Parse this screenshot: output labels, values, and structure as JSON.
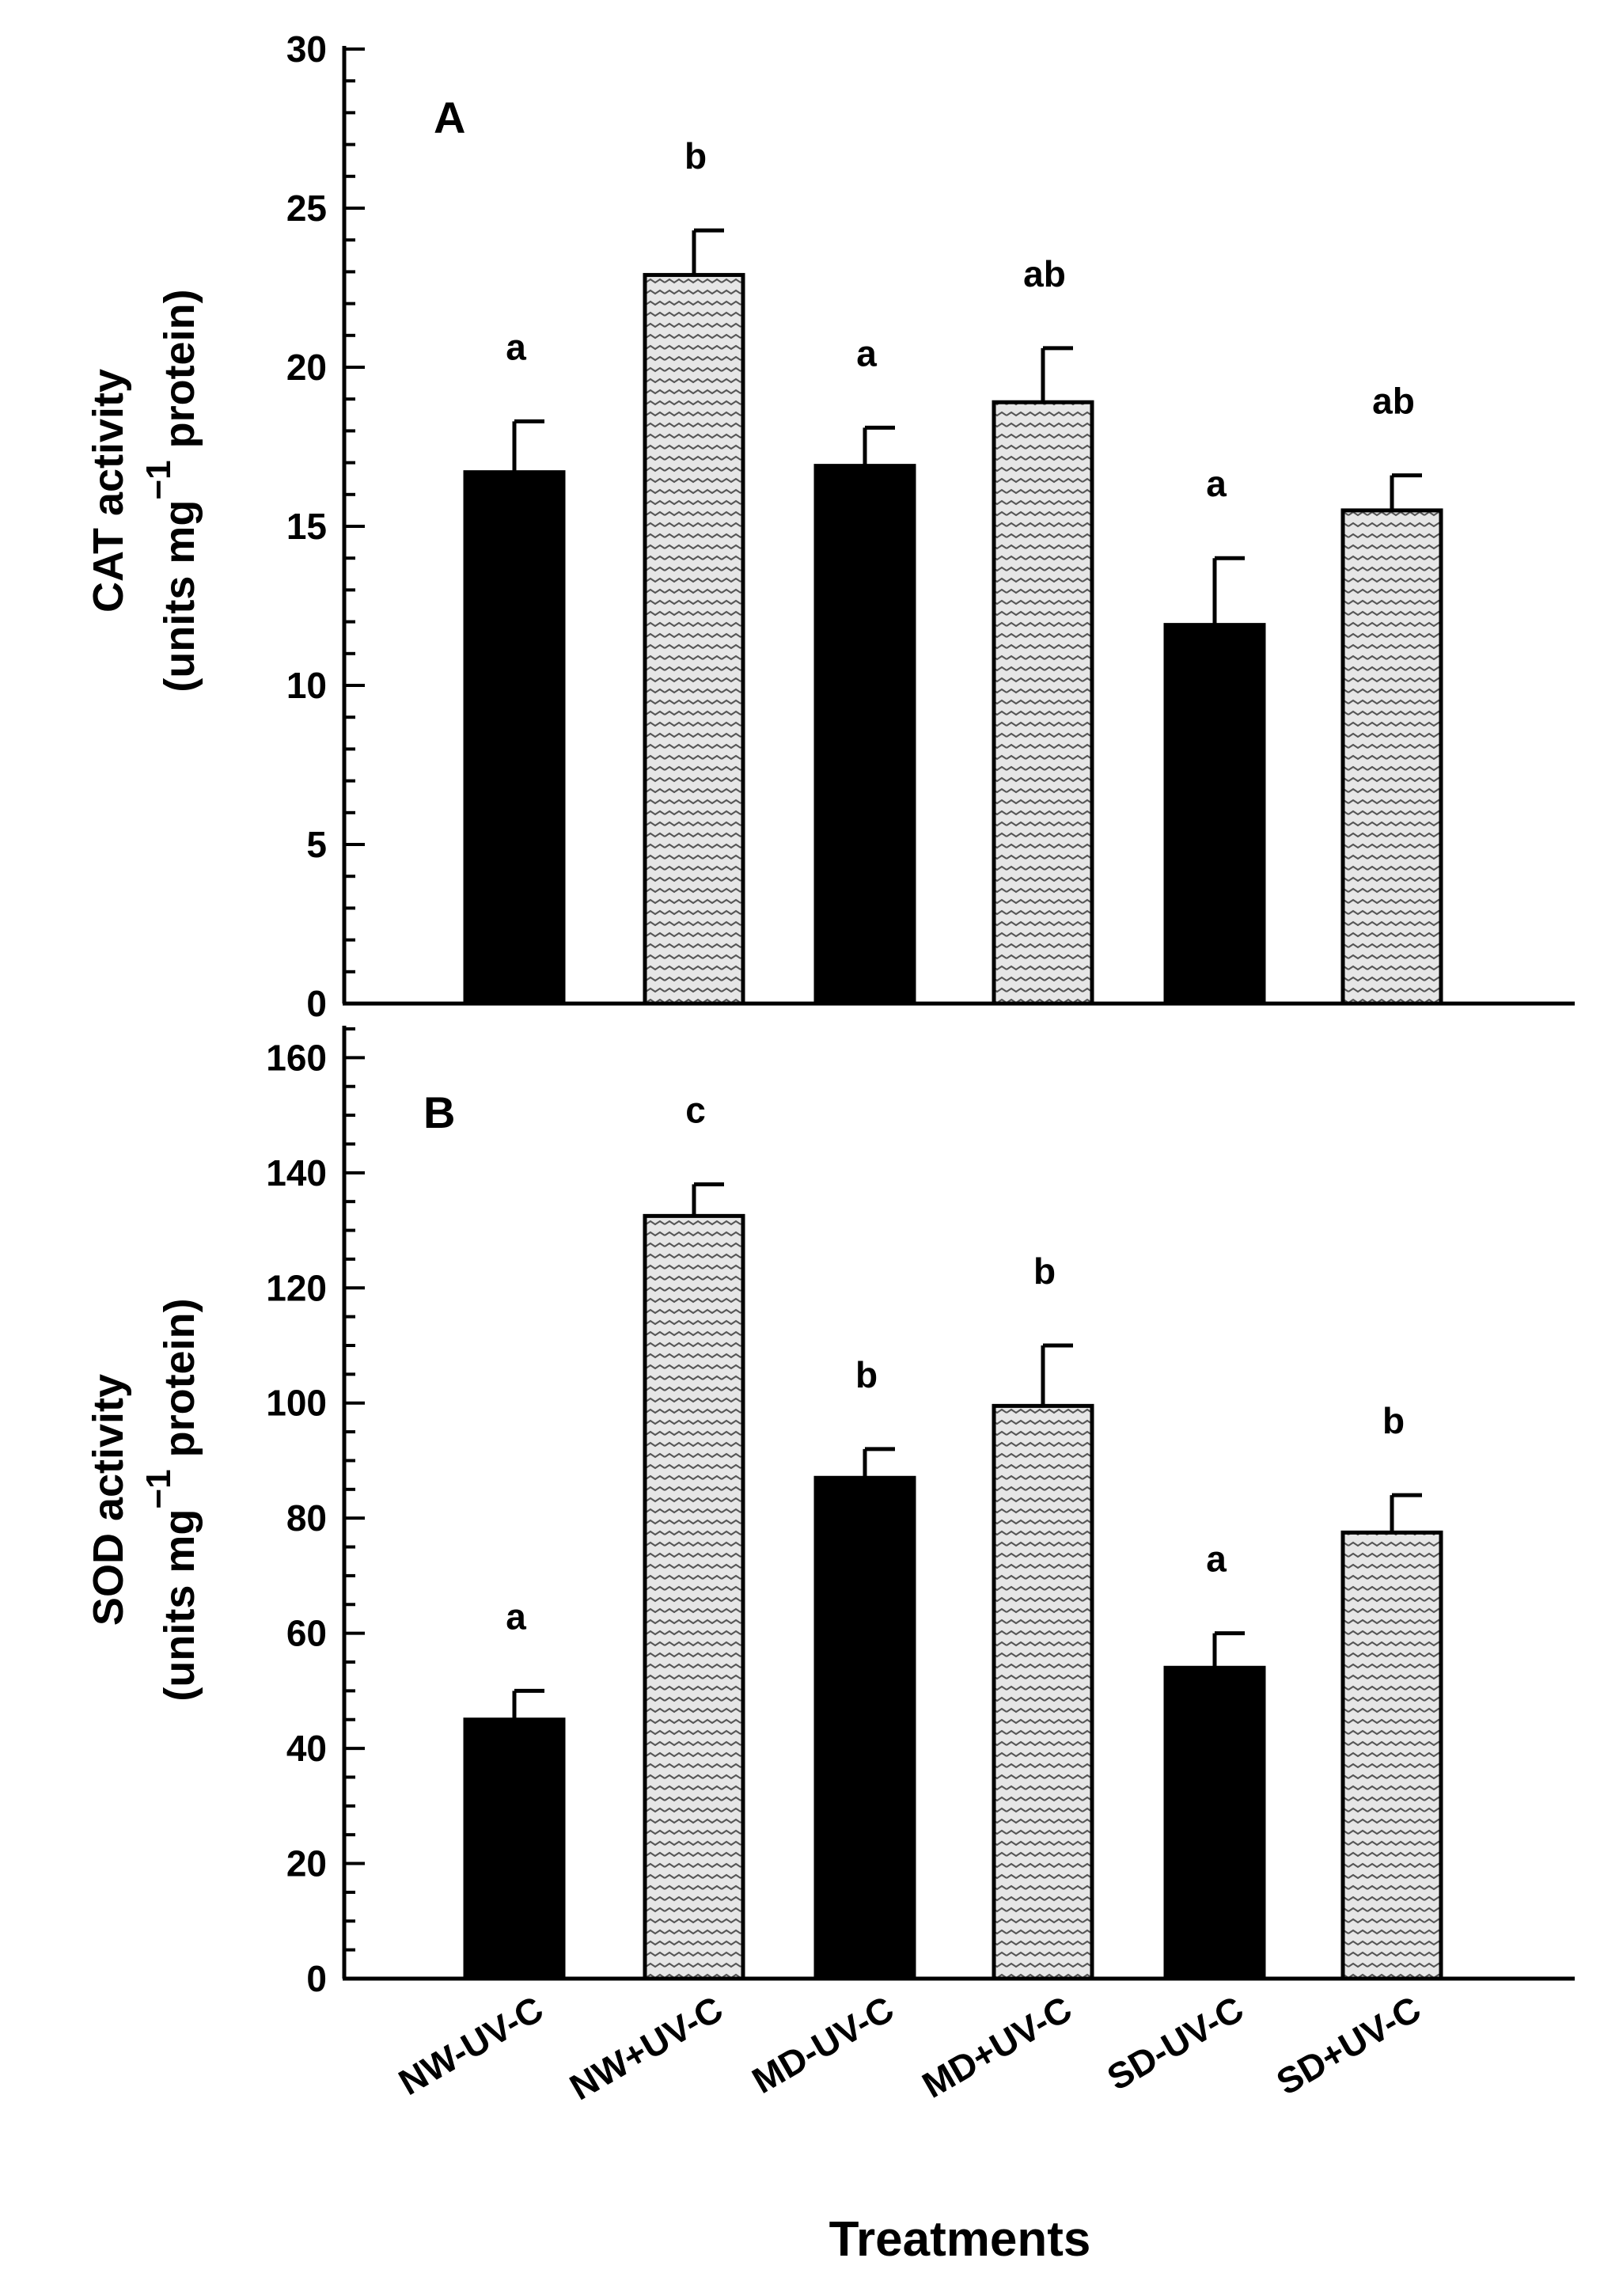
{
  "colors": {
    "solid": "#000000",
    "hatched_fill": "#e6e6e6",
    "hatch_line": "#555555"
  },
  "chart_data": [
    {
      "type": "bar",
      "panel": "A",
      "title": "",
      "ylabel_line1": "CAT activity",
      "ylabel_line2_pre": "(units mg",
      "ylabel_sup": "−1",
      "ylabel_line2_post": " protein)",
      "ylim": [
        0,
        30
      ],
      "major_ticks": [
        0,
        5,
        10,
        15,
        20,
        25,
        30
      ],
      "minor_tick_step": 1,
      "categories": [
        "NW-UV-C",
        "NW+UV-C",
        "MD-UV-C",
        "MD+UV-C",
        "SD-UV-C",
        "SD+UV-C"
      ],
      "values": [
        16.7,
        22.9,
        16.9,
        18.9,
        11.9,
        15.5
      ],
      "errors": [
        1.6,
        1.4,
        1.2,
        1.7,
        2.1,
        1.1
      ],
      "styles": [
        "solid",
        "hatched",
        "solid",
        "hatched",
        "solid",
        "hatched"
      ],
      "sig_letters": [
        "a",
        "b",
        "a",
        "ab",
        "a",
        "ab"
      ]
    },
    {
      "type": "bar",
      "panel": "B",
      "title": "",
      "ylabel_line1": "SOD activity",
      "ylabel_line2_pre": "(units mg",
      "ylabel_sup": "−1",
      "ylabel_line2_post": " protein)",
      "ylim": [
        0,
        165
      ],
      "major_ticks": [
        0,
        20,
        40,
        60,
        80,
        100,
        120,
        140,
        160
      ],
      "minor_tick_step": 5,
      "categories": [
        "NW-UV-C",
        "NW+UV-C",
        "MD-UV-C",
        "MD+UV-C",
        "SD-UV-C",
        "SD+UV-C"
      ],
      "values": [
        45,
        132.5,
        87,
        99.5,
        54,
        77.5
      ],
      "errors": [
        5,
        5.5,
        5,
        10.5,
        6,
        6.5
      ],
      "styles": [
        "solid",
        "hatched",
        "solid",
        "hatched",
        "solid",
        "hatched"
      ],
      "sig_letters": [
        "a",
        "c",
        "b",
        "b",
        "a",
        "b"
      ]
    }
  ],
  "xlabel": "Treatments"
}
